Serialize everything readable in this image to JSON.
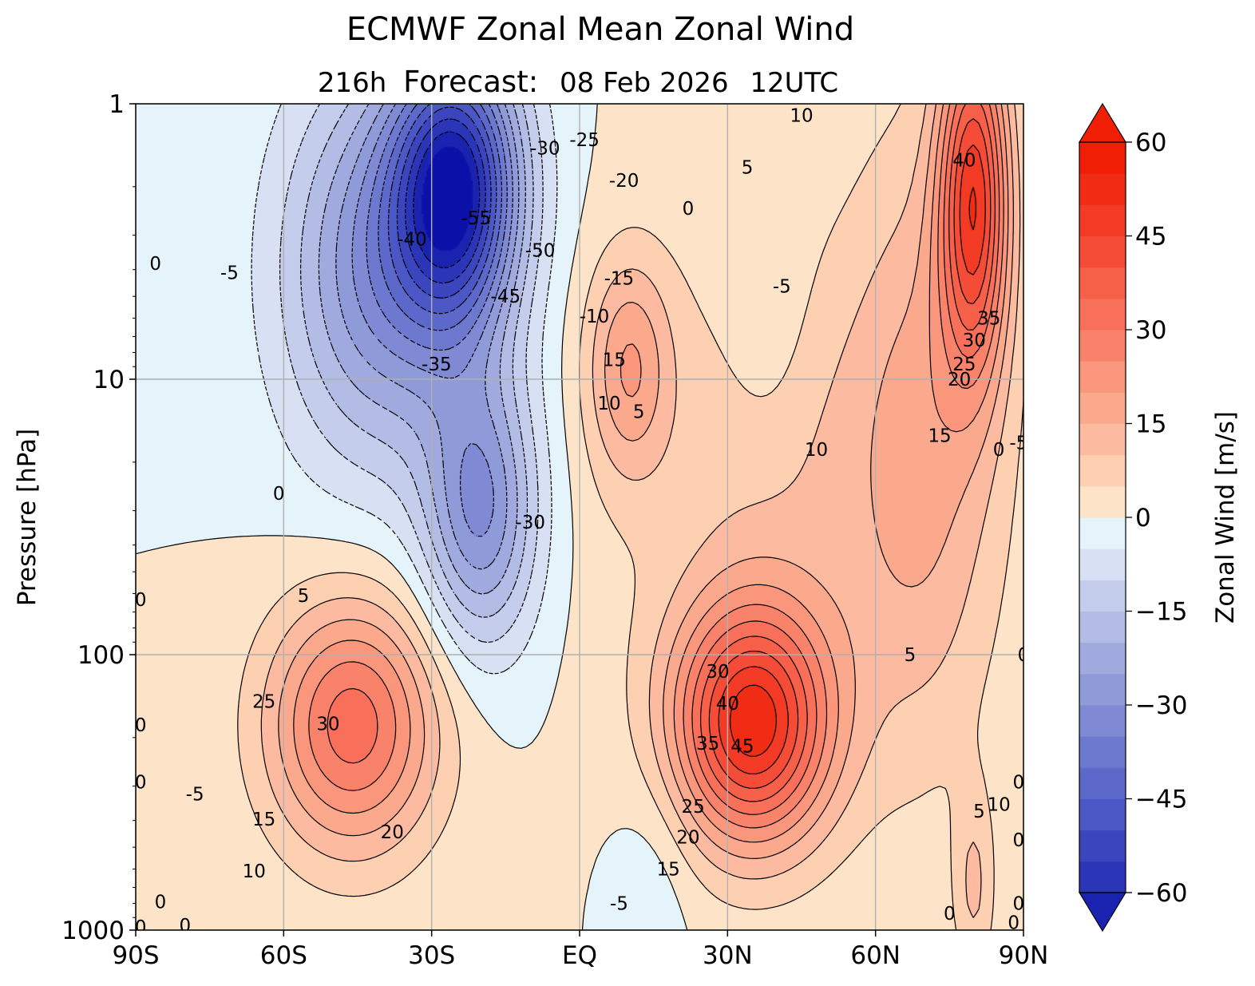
{
  "chart_data": {
    "type": "heatmap",
    "title": "ECMWF Zonal Mean Zonal Wind",
    "subtitle": {
      "lead": "216h",
      "label": "Forecast:",
      "date": "08 Feb 2026",
      "time": "12UTC"
    },
    "xlabel": "",
    "ylabel": "Pressure [hPa]",
    "x_axis": {
      "range": [
        -90,
        90
      ],
      "ticks": [
        -90,
        -60,
        -30,
        0,
        30,
        60,
        90
      ],
      "tick_labels": [
        "90S",
        "60S",
        "30S",
        "EQ",
        "30N",
        "60N",
        "90N"
      ]
    },
    "y_axis": {
      "scale": "log",
      "inverted": true,
      "range": [
        1000,
        1
      ],
      "ticks": [
        1,
        10,
        100,
        1000
      ],
      "tick_labels": [
        "1",
        "10",
        "100",
        "1000"
      ]
    },
    "grid": true,
    "colorbar": {
      "label": "Zonal Wind [m/s]",
      "range": [
        -60,
        60
      ],
      "step": 5,
      "extend": "both",
      "ticks": [
        60,
        45,
        30,
        15,
        0,
        -15,
        -30,
        -45,
        -60
      ],
      "tick_labels": [
        "60",
        "45",
        "30",
        "15",
        "0",
        "−15",
        "−30",
        "−45",
        "−60"
      ],
      "neg_colors": [
        "#0a10a8",
        "#1a23b0",
        "#2b35b8",
        "#3a45be",
        "#4b57c4",
        "#5c68ca",
        "#6d79cf",
        "#7f89d4",
        "#8f9ad9",
        "#a1aade",
        "#b3bce5",
        "#c5cded",
        "#d8e0f3",
        "#e5f3fb"
      ],
      "pos_colors": [
        "#fde4c8",
        "#fdd0b2",
        "#fcbba0",
        "#fba98d",
        "#fa967c",
        "#f9836a",
        "#f8705a",
        "#f65f48",
        "#f44c36",
        "#f23a24",
        "#f02c14",
        "#f01e05"
      ],
      "zero_line_color": "#000000"
    },
    "jets": [
      {
        "lat": -46,
        "p": 180,
        "u": 33,
        "sx": 12,
        "sy": 0.32
      },
      {
        "lat": 35,
        "p": 180,
        "u": 50,
        "sx": 11,
        "sy": 0.3
      },
      {
        "lat": 80,
        "p": 2.2,
        "u": 45,
        "sx": 5,
        "sy": 0.45
      },
      {
        "lat": 10,
        "p": 9,
        "u": 18,
        "sx": 6,
        "sy": 0.28
      },
      {
        "lat": 45,
        "p": 25,
        "u": 10,
        "sx": 25,
        "sy": 0.7
      },
      {
        "lat": 70,
        "p": 15,
        "u": 12,
        "sx": 10,
        "sy": 0.8
      },
      {
        "lat": -25,
        "p": 2,
        "u": -58,
        "sx": 9,
        "sy": 0.35
      },
      {
        "lat": -20,
        "p": 30,
        "u": -30,
        "sx": 8,
        "sy": 0.35
      },
      {
        "lat": -40,
        "p": 4,
        "u": -30,
        "sx": 14,
        "sy": 0.5
      },
      {
        "lat": 38,
        "p": 6,
        "u": -5,
        "sx": 6,
        "sy": 0.35
      },
      {
        "lat": 80,
        "p": 700,
        "u": 10,
        "sx": 3,
        "sy": 0.25
      },
      {
        "lat": 15,
        "p": 600,
        "u": -4,
        "sx": 6,
        "sy": 0.3
      }
    ],
    "contour_labels": [
      {
        "t": "10",
        "lat": 45,
        "p": 1.1
      },
      {
        "t": "5",
        "lat": 34,
        "p": 1.7
      },
      {
        "t": "0",
        "lat": 22,
        "p": 2.4
      },
      {
        "t": "40",
        "lat": 78,
        "p": 1.6
      },
      {
        "t": "-25",
        "lat": 1,
        "p": 1.35
      },
      {
        "t": "-30",
        "lat": -7,
        "p": 1.45
      },
      {
        "t": "-20",
        "lat": 9,
        "p": 1.9
      },
      {
        "t": "-55",
        "lat": -21,
        "p": 2.6
      },
      {
        "t": "-40",
        "lat": -34,
        "p": 3.1
      },
      {
        "t": "-50",
        "lat": -8,
        "p": 3.4
      },
      {
        "t": "0",
        "lat": -86,
        "p": 3.8
      },
      {
        "t": "-5",
        "lat": -71,
        "p": 4.1
      },
      {
        "t": "-15",
        "lat": 8,
        "p": 4.3
      },
      {
        "t": "-5",
        "lat": 41,
        "p": 4.6
      },
      {
        "t": "-45",
        "lat": -15,
        "p": 5.0
      },
      {
        "t": "-10",
        "lat": 3,
        "p": 5.9
      },
      {
        "t": "35",
        "lat": 83,
        "p": 6.0
      },
      {
        "t": "30",
        "lat": 80,
        "p": 7.2
      },
      {
        "t": "15",
        "lat": 7,
        "p": 8.5
      },
      {
        "t": "-35",
        "lat": -29,
        "p": 8.8
      },
      {
        "t": "25",
        "lat": 78,
        "p": 8.8
      },
      {
        "t": "20",
        "lat": 77,
        "p": 10.0
      },
      {
        "t": "10",
        "lat": 6,
        "p": 12.2
      },
      {
        "t": "5",
        "lat": 12,
        "p": 13.1
      },
      {
        "t": "10",
        "lat": 48,
        "p": 18.0
      },
      {
        "t": "15",
        "lat": 73,
        "p": 16.0
      },
      {
        "t": "-5",
        "lat": 89,
        "p": 17.0
      },
      {
        "t": "0",
        "lat": 85,
        "p": 18.0
      },
      {
        "t": "0",
        "lat": -61,
        "p": 26.0
      },
      {
        "t": "-30",
        "lat": -10,
        "p": 33.0
      },
      {
        "t": "5",
        "lat": -56,
        "p": 61.0
      },
      {
        "t": "0",
        "lat": -89,
        "p": 63.0
      },
      {
        "t": "5",
        "lat": 67,
        "p": 100.0
      },
      {
        "t": "0",
        "lat": 90,
        "p": 100.0
      },
      {
        "t": "30",
        "lat": 28,
        "p": 115.0
      },
      {
        "t": "25",
        "lat": -64,
        "p": 148.0
      },
      {
        "t": "40",
        "lat": 30,
        "p": 150.0
      },
      {
        "t": "30",
        "lat": -51,
        "p": 178.0
      },
      {
        "t": "0",
        "lat": -89,
        "p": 180.0
      },
      {
        "t": "35",
        "lat": 26,
        "p": 210.0
      },
      {
        "t": "45",
        "lat": 33,
        "p": 215.0
      },
      {
        "t": "0",
        "lat": -89,
        "p": 290.0
      },
      {
        "t": "0",
        "lat": 89,
        "p": 290.0
      },
      {
        "t": "-5",
        "lat": -78,
        "p": 320.0
      },
      {
        "t": "10",
        "lat": 85,
        "p": 350.0
      },
      {
        "t": "25",
        "lat": 23,
        "p": 355.0
      },
      {
        "t": "5",
        "lat": 81,
        "p": 370.0
      },
      {
        "t": "15",
        "lat": -64,
        "p": 395.0
      },
      {
        "t": "20",
        "lat": -38,
        "p": 440.0
      },
      {
        "t": "20",
        "lat": 22,
        "p": 460.0
      },
      {
        "t": "10",
        "lat": -66,
        "p": 610.0
      },
      {
        "t": "15",
        "lat": 18,
        "p": 600.0
      },
      {
        "t": "0",
        "lat": 89,
        "p": 470.0
      },
      {
        "t": "0",
        "lat": -85,
        "p": 790.0
      },
      {
        "t": "-5",
        "lat": 8,
        "p": 800.0
      },
      {
        "t": "0",
        "lat": 89,
        "p": 800.0
      },
      {
        "t": "0",
        "lat": 75,
        "p": 870.0
      },
      {
        "t": "0",
        "lat": -80,
        "p": 960.0
      },
      {
        "t": "0",
        "lat": -89,
        "p": 975.0
      },
      {
        "t": "0",
        "lat": 88,
        "p": 940.0
      }
    ]
  }
}
